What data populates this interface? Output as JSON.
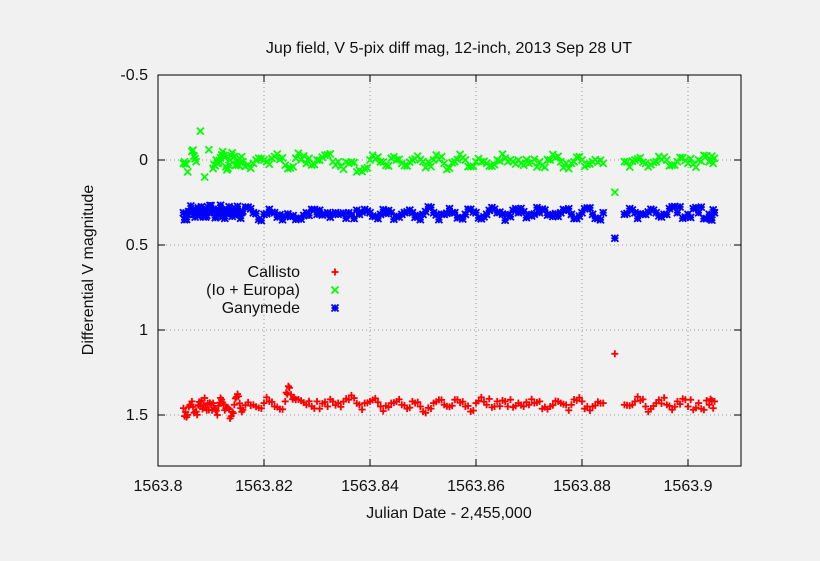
{
  "chart_data": {
    "type": "scatter",
    "title": "Jup field, V 5-pix diff mag, 12-inch, 2013 Sep 28 UT",
    "xlabel": "Julian Date - 2,455,000",
    "ylabel": "Differential V magnitude",
    "xlim": [
      1563.8,
      1563.91
    ],
    "ylim": [
      1.8,
      -0.5
    ],
    "y_inverted": true,
    "x_ticks": [
      1563.8,
      1563.82,
      1563.84,
      1563.86,
      1563.88,
      1563.9
    ],
    "x_tick_labels": [
      "1563.8",
      "1563.82",
      "1563.84",
      "1563.86",
      "1563.88",
      "1563.9"
    ],
    "y_ticks": [
      -0.5,
      0,
      0.5,
      1,
      1.5
    ],
    "y_tick_labels": [
      "-0.5",
      "0",
      "0.5",
      "1",
      "1.5"
    ],
    "grid": true,
    "legend_placement": "center-left",
    "series": [
      {
        "name": "Callisto",
        "color": "#ff0000",
        "marker": "plus",
        "x": [
          1563.8048,
          1563.8056,
          1563.8064,
          1563.8072,
          1563.808,
          1563.8088,
          1563.8096,
          1563.8104,
          1563.8112,
          1563.812,
          1563.8128,
          1563.8136,
          1563.8144,
          1563.8152,
          1563.816,
          1563.818,
          1563.82,
          1563.822,
          1563.824,
          1563.8248,
          1563.826,
          1563.828,
          1563.83,
          1563.832,
          1563.834,
          1563.836,
          1563.838,
          1563.84,
          1563.842,
          1563.844,
          1563.846,
          1563.848,
          1563.85,
          1563.852,
          1563.854,
          1563.856,
          1563.858,
          1563.86,
          1563.862,
          1563.864,
          1563.866,
          1563.868,
          1563.87,
          1563.872,
          1563.874,
          1563.876,
          1563.878,
          1563.88,
          1563.882,
          1563.884,
          1563.8862,
          1563.888,
          1563.89,
          1563.892,
          1563.894,
          1563.896,
          1563.898,
          1563.9,
          1563.902,
          1563.904,
          1563.905
        ],
        "values": [
          1.46,
          1.5,
          1.42,
          1.48,
          1.45,
          1.4,
          1.47,
          1.43,
          1.5,
          1.41,
          1.46,
          1.52,
          1.44,
          1.39,
          1.47,
          1.44,
          1.43,
          1.45,
          1.42,
          1.34,
          1.41,
          1.44,
          1.42,
          1.45,
          1.43,
          1.41,
          1.44,
          1.42,
          1.45,
          1.43,
          1.44,
          1.42,
          1.48,
          1.43,
          1.44,
          1.41,
          1.45,
          1.43,
          1.44,
          1.42,
          1.45,
          1.43,
          1.44,
          1.42,
          1.45,
          1.43,
          1.44,
          1.42,
          1.45,
          1.43,
          1.14,
          1.44,
          1.42,
          1.45,
          1.43,
          1.44,
          1.42,
          1.45,
          1.43,
          1.44,
          1.42
        ]
      },
      {
        "name": "(Io + Europa)",
        "color": "#00ff00",
        "marker": "cross",
        "x": [
          1563.8048,
          1563.8056,
          1563.8064,
          1563.8072,
          1563.808,
          1563.8088,
          1563.8096,
          1563.8104,
          1563.8112,
          1563.812,
          1563.8128,
          1563.8136,
          1563.8144,
          1563.8152,
          1563.816,
          1563.818,
          1563.82,
          1563.822,
          1563.824,
          1563.826,
          1563.828,
          1563.83,
          1563.832,
          1563.834,
          1563.836,
          1563.838,
          1563.84,
          1563.842,
          1563.844,
          1563.846,
          1563.848,
          1563.85,
          1563.852,
          1563.854,
          1563.856,
          1563.858,
          1563.86,
          1563.862,
          1563.864,
          1563.866,
          1563.868,
          1563.87,
          1563.872,
          1563.874,
          1563.876,
          1563.878,
          1563.88,
          1563.882,
          1563.884,
          1563.8862,
          1563.888,
          1563.89,
          1563.892,
          1563.894,
          1563.896,
          1563.898,
          1563.9,
          1563.902,
          1563.904,
          1563.905
        ],
        "values": [
          0.02,
          0.07,
          -0.05,
          0.01,
          -0.17,
          0.1,
          -0.06,
          0.05,
          0.02,
          -0.03,
          0.04,
          0.0,
          -0.02,
          0.03,
          0.01,
          0.02,
          0.0,
          -0.02,
          0.03,
          -0.01,
          0.02,
          0.0,
          -0.03,
          0.01,
          0.02,
          0.06,
          0.0,
          0.01,
          -0.01,
          0.02,
          0.0,
          0.01,
          0.0,
          0.02,
          0.01,
          0.0,
          0.01,
          0.02,
          0.0,
          0.01,
          0.0,
          0.02,
          0.01,
          0.0,
          0.01,
          0.02,
          0.0,
          0.01,
          0.02,
          0.19,
          0.01,
          0.0,
          0.02,
          0.01,
          0.0,
          0.01,
          0.02,
          0.0,
          0.01,
          -0.01
        ]
      },
      {
        "name": "Ganymede",
        "color": "#0000ff",
        "marker": "star",
        "x": [
          1563.8048,
          1563.8056,
          1563.8064,
          1563.8072,
          1563.808,
          1563.8088,
          1563.8096,
          1563.8104,
          1563.8112,
          1563.812,
          1563.8128,
          1563.8136,
          1563.8144,
          1563.8152,
          1563.816,
          1563.818,
          1563.82,
          1563.822,
          1563.824,
          1563.826,
          1563.828,
          1563.83,
          1563.832,
          1563.834,
          1563.836,
          1563.838,
          1563.84,
          1563.842,
          1563.844,
          1563.846,
          1563.848,
          1563.85,
          1563.852,
          1563.854,
          1563.856,
          1563.858,
          1563.86,
          1563.862,
          1563.864,
          1563.866,
          1563.868,
          1563.87,
          1563.872,
          1563.874,
          1563.876,
          1563.878,
          1563.88,
          1563.882,
          1563.884,
          1563.8862,
          1563.888,
          1563.89,
          1563.892,
          1563.894,
          1563.896,
          1563.898,
          1563.9,
          1563.902,
          1563.904,
          1563.905
        ],
        "values": [
          0.31,
          0.32,
          0.3,
          0.31,
          0.32,
          0.3,
          0.31,
          0.29,
          0.32,
          0.3,
          0.31,
          0.3,
          0.32,
          0.31,
          0.3,
          0.31,
          0.32,
          0.31,
          0.33,
          0.35,
          0.31,
          0.32,
          0.31,
          0.32,
          0.31,
          0.32,
          0.31,
          0.32,
          0.31,
          0.32,
          0.31,
          0.32,
          0.31,
          0.32,
          0.31,
          0.32,
          0.31,
          0.32,
          0.31,
          0.32,
          0.31,
          0.32,
          0.31,
          0.32,
          0.31,
          0.32,
          0.31,
          0.32,
          0.31,
          0.46,
          0.32,
          0.31,
          0.32,
          0.31,
          0.32,
          0.31,
          0.32,
          0.31,
          0.32,
          0.31
        ]
      }
    ]
  }
}
